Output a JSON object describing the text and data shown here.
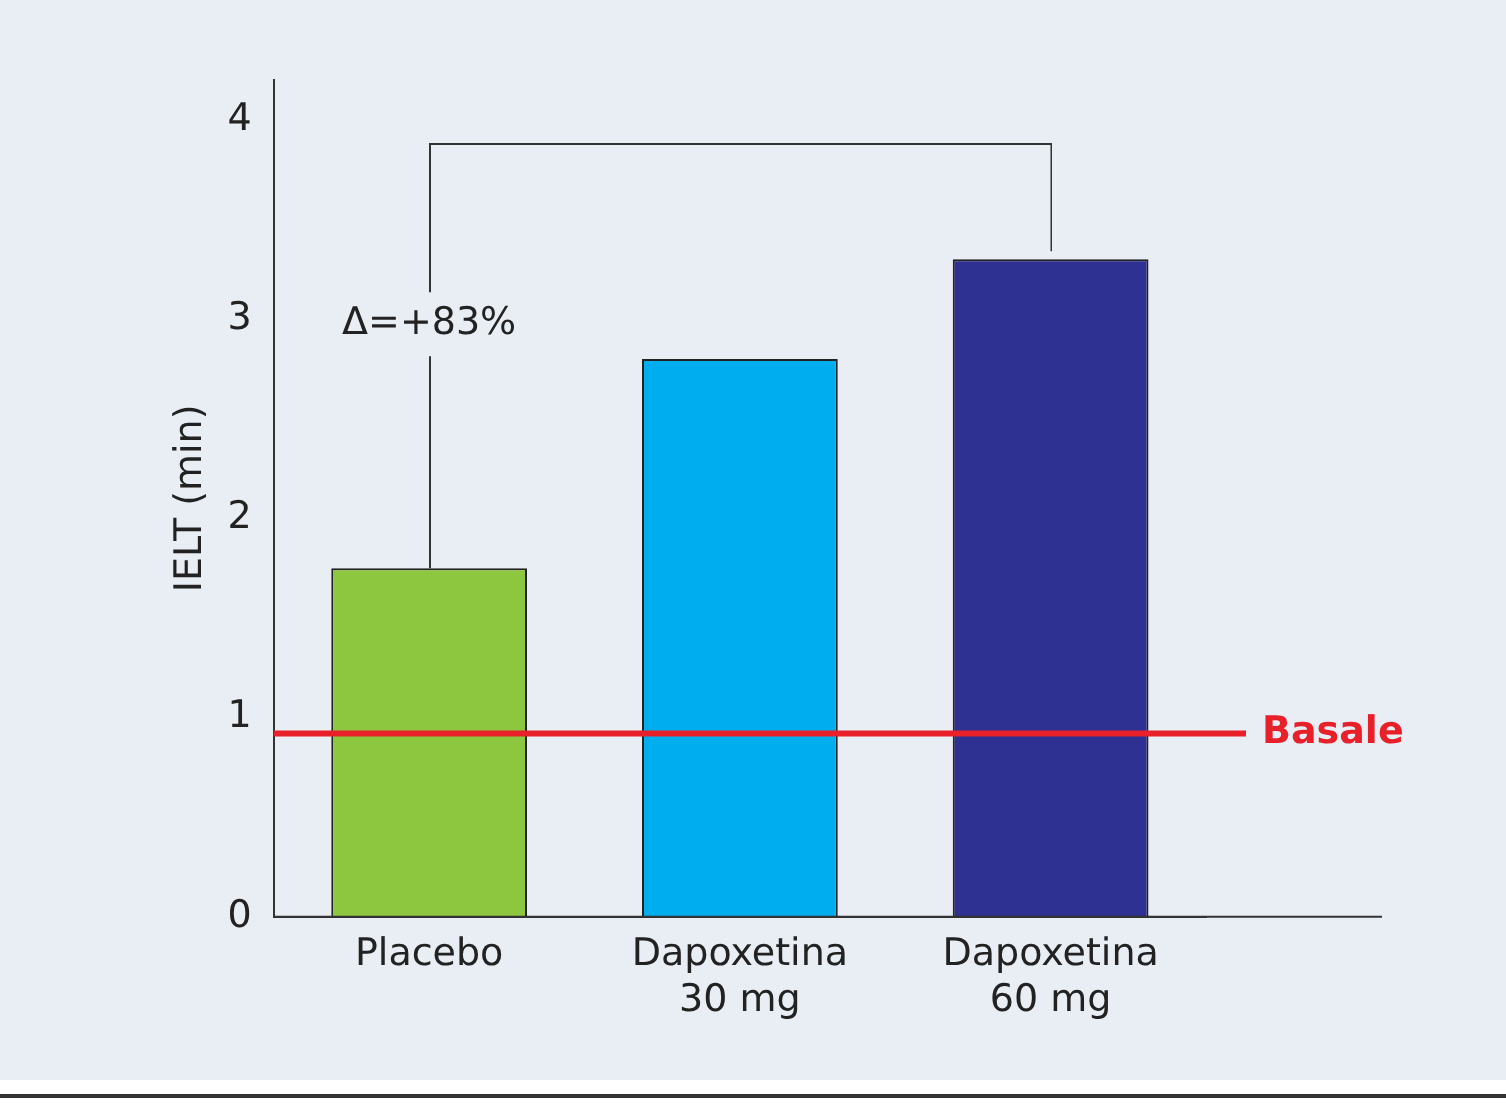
{
  "chart_data": {
    "type": "bar",
    "ylabel": "IELT (min)",
    "categories": [
      "Placebo",
      "Dapoxetina\n30 mg",
      "Dapoxetina\n60 mg"
    ],
    "values": [
      1.75,
      2.8,
      3.3
    ],
    "colors": [
      "#8dc63f",
      "#00aeef",
      "#2e3192"
    ],
    "ylim": [
      0,
      4.2
    ],
    "yticks": [
      0,
      1,
      2,
      3,
      4
    ],
    "grid": false,
    "legend": false,
    "ref_lines": [
      {
        "axis": "y",
        "value": 0.92,
        "label": "Basale",
        "color": "#e8202a"
      }
    ],
    "annotations": [
      {
        "text": "Δ=+83%",
        "x": "Placebo",
        "y": 1.75
      }
    ]
  }
}
